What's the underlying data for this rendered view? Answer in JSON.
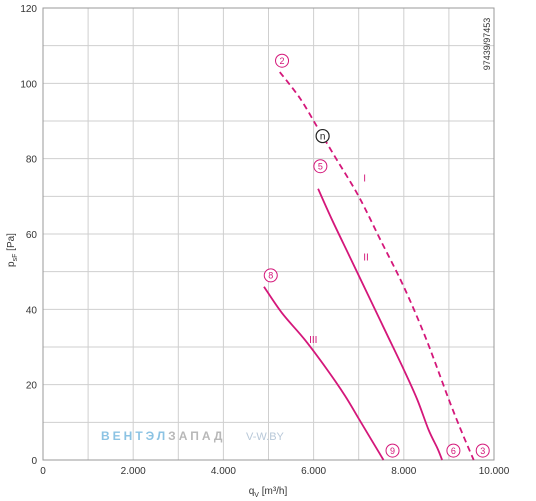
{
  "chart_data": {
    "type": "line",
    "xlabel": "q",
    "xlabel_sub": "V",
    "xlabel_unit": "[m³/h]",
    "ylabel": "p",
    "ylabel_sub": "sF",
    "ylabel_unit": "[Pa]",
    "xlim": [
      0,
      10000
    ],
    "ylim": [
      0,
      120
    ],
    "x_ticks": [
      0,
      2000,
      4000,
      6000,
      8000,
      10000
    ],
    "x_tick_labels": [
      "0",
      "2.000",
      "4.000",
      "6.000",
      "8.000",
      "10.000"
    ],
    "y_ticks": [
      0,
      20,
      40,
      60,
      80,
      100,
      120
    ],
    "y_tick_labels": [
      "0",
      "20",
      "40",
      "60",
      "80",
      "100",
      "120"
    ],
    "grid": true,
    "reference_code": "97439/97453",
    "rpm_marker": "n",
    "series": [
      {
        "name": "I",
        "style": "dashed",
        "color": "#d4177a",
        "start_label": "2",
        "end_label": "3",
        "x": [
          5250,
          5700,
          6100,
          6500,
          7000,
          7500,
          8000,
          8500,
          9000,
          9300,
          9550
        ],
        "y": [
          103,
          96,
          88,
          80,
          70,
          58,
          46,
          32,
          16,
          7,
          0
        ]
      },
      {
        "name": "II",
        "style": "solid",
        "color": "#d4177a",
        "start_label": "5",
        "end_label": "6",
        "x": [
          6100,
          6400,
          6800,
          7200,
          7600,
          8000,
          8300,
          8550,
          8750,
          8850
        ],
        "y": [
          72,
          64,
          54,
          44,
          34,
          24,
          16,
          8,
          3,
          0
        ]
      },
      {
        "name": "III",
        "style": "solid",
        "color": "#d4177a",
        "start_label": "8",
        "end_label": "9",
        "x": [
          4900,
          5300,
          5800,
          6300,
          6700,
          7000,
          7250,
          7450,
          7550
        ],
        "y": [
          46,
          39,
          32,
          24,
          17,
          11,
          6,
          2,
          0
        ]
      }
    ],
    "label_positions": [
      {
        "text": "I",
        "x": 7100,
        "y": 74
      },
      {
        "text": "II",
        "x": 7100,
        "y": 53
      },
      {
        "text": "III",
        "x": 5900,
        "y": 31
      }
    ],
    "markers": [
      {
        "text": "2",
        "x": 5300,
        "y": 106
      },
      {
        "text": "5",
        "x": 6150,
        "y": 78
      },
      {
        "text": "8",
        "x": 5050,
        "y": 49
      },
      {
        "text": "9",
        "x": 7750,
        "y": 2.5
      },
      {
        "text": "6",
        "x": 9100,
        "y": 2.5
      },
      {
        "text": "3",
        "x": 9750,
        "y": 2.5
      }
    ],
    "rpm_marker_position": {
      "x": 6200,
      "y": 86
    }
  },
  "watermark": {
    "brand_part1": "ВЕНТЭЛ",
    "brand_part2": "ЗАПАД",
    "url": "V-W.BY"
  }
}
